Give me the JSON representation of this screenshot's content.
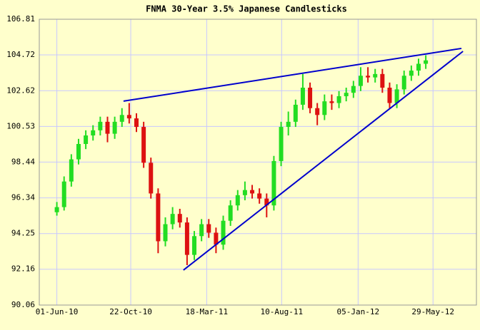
{
  "chart_data": {
    "type": "candlestick",
    "title": "FNMA 30-Year 3.5% Japanese Candlesticks",
    "x": [
      "2010-06-01",
      "2010-06-15",
      "2010-06-29",
      "2010-07-13",
      "2010-07-27",
      "2010-08-10",
      "2010-08-24",
      "2010-09-07",
      "2010-09-21",
      "2010-10-05",
      "2010-10-19",
      "2010-11-02",
      "2010-11-16",
      "2010-11-30",
      "2010-12-14",
      "2010-12-28",
      "2011-01-11",
      "2011-01-25",
      "2011-02-08",
      "2011-02-22",
      "2011-03-08",
      "2011-03-22",
      "2011-04-05",
      "2011-04-19",
      "2011-05-03",
      "2011-05-17",
      "2011-05-31",
      "2011-06-14",
      "2011-06-28",
      "2011-07-12",
      "2011-07-26",
      "2011-08-09",
      "2011-08-23",
      "2011-09-06",
      "2011-09-20",
      "2011-10-04",
      "2011-10-18",
      "2011-11-01",
      "2011-11-15",
      "2011-11-29",
      "2011-12-13",
      "2011-12-27",
      "2012-01-10",
      "2012-01-24",
      "2012-02-07",
      "2012-02-21",
      "2012-03-06",
      "2012-03-20",
      "2012-04-03",
      "2012-04-17",
      "2012-05-01",
      "2012-05-15"
    ],
    "open": [
      95.5,
      95.8,
      97.3,
      98.6,
      99.5,
      100.0,
      100.3,
      100.8,
      100.1,
      100.8,
      101.2,
      101.0,
      100.5,
      98.4,
      96.6,
      93.8,
      94.8,
      95.4,
      94.9,
      93.0,
      94.1,
      94.8,
      94.3,
      93.6,
      95.0,
      95.9,
      96.5,
      96.8,
      96.6,
      96.3,
      95.9,
      98.5,
      100.5,
      100.8,
      101.8,
      102.8,
      101.6,
      101.2,
      102.0,
      101.9,
      102.3,
      102.5,
      102.9,
      103.5,
      103.4,
      103.6,
      102.8,
      101.9,
      102.7,
      103.5,
      103.8,
      104.2
    ],
    "high": [
      96.1,
      97.6,
      98.9,
      99.8,
      100.3,
      100.6,
      101.1,
      101.1,
      101.1,
      101.6,
      101.9,
      101.3,
      100.8,
      98.7,
      96.9,
      95.2,
      95.8,
      95.7,
      95.2,
      94.4,
      95.1,
      95.1,
      94.6,
      95.3,
      96.2,
      96.8,
      97.3,
      97.1,
      96.9,
      96.6,
      98.8,
      100.8,
      101.4,
      102.1,
      103.6,
      103.1,
      101.9,
      102.4,
      102.4,
      102.6,
      102.8,
      103.2,
      104.0,
      104.0,
      103.9,
      103.9,
      103.1,
      103.0,
      103.8,
      104.1,
      104.5,
      104.7
    ],
    "low": [
      95.3,
      95.6,
      97.0,
      98.3,
      99.2,
      99.7,
      100.0,
      99.6,
      99.8,
      100.5,
      100.7,
      100.2,
      98.1,
      96.3,
      93.1,
      93.5,
      94.5,
      94.6,
      92.4,
      92.7,
      93.8,
      94.0,
      93.1,
      93.3,
      94.7,
      95.6,
      96.2,
      96.3,
      96.0,
      95.2,
      95.6,
      98.2,
      100.0,
      100.5,
      101.5,
      101.3,
      100.6,
      100.9,
      101.5,
      101.6,
      102.0,
      102.2,
      102.6,
      103.1,
      103.1,
      102.5,
      101.6,
      101.6,
      102.4,
      103.2,
      103.5,
      103.9
    ],
    "close": [
      95.8,
      97.3,
      98.6,
      99.5,
      100.0,
      100.3,
      100.8,
      100.1,
      100.8,
      101.2,
      101.0,
      100.5,
      98.4,
      96.6,
      93.8,
      94.8,
      95.4,
      94.9,
      93.0,
      94.1,
      94.8,
      94.3,
      93.6,
      95.0,
      95.9,
      96.5,
      96.8,
      96.6,
      96.3,
      95.9,
      98.5,
      100.5,
      100.8,
      101.8,
      102.8,
      101.6,
      101.2,
      102.0,
      101.9,
      102.3,
      102.5,
      102.9,
      103.5,
      103.4,
      103.6,
      102.8,
      101.9,
      102.7,
      103.5,
      103.8,
      104.2,
      104.4
    ],
    "up_color": "#22dd22",
    "down_color": "#dd1111",
    "trendlines": [
      {
        "x": [
          "2010-10-08",
          "2012-07-23"
        ],
        "y": [
          102.01,
          105.1
        ],
        "color": "#0000cc"
      },
      {
        "x": [
          "2011-02-01",
          "2012-07-26"
        ],
        "y": [
          92.11,
          104.93
        ],
        "color": "#0000cc"
      }
    ],
    "xlim": [
      "2010-04-28",
      "2012-08-21"
    ],
    "xticks": [
      {
        "value": "2010-06-01",
        "label": "01-Jun-10"
      },
      {
        "value": "2010-10-22",
        "label": "22-Oct-10"
      },
      {
        "value": "2011-03-18",
        "label": "18-Mar-11"
      },
      {
        "value": "2011-08-10",
        "label": "10-Aug-11"
      },
      {
        "value": "2012-01-05",
        "label": "05-Jan-12"
      },
      {
        "value": "2012-05-29",
        "label": "29-May-12"
      }
    ],
    "ylim": [
      90.06,
      106.81
    ],
    "yticks": [
      90.06,
      92.16,
      94.25,
      96.34,
      98.44,
      100.53,
      102.62,
      104.72,
      106.81
    ],
    "grid": true
  }
}
